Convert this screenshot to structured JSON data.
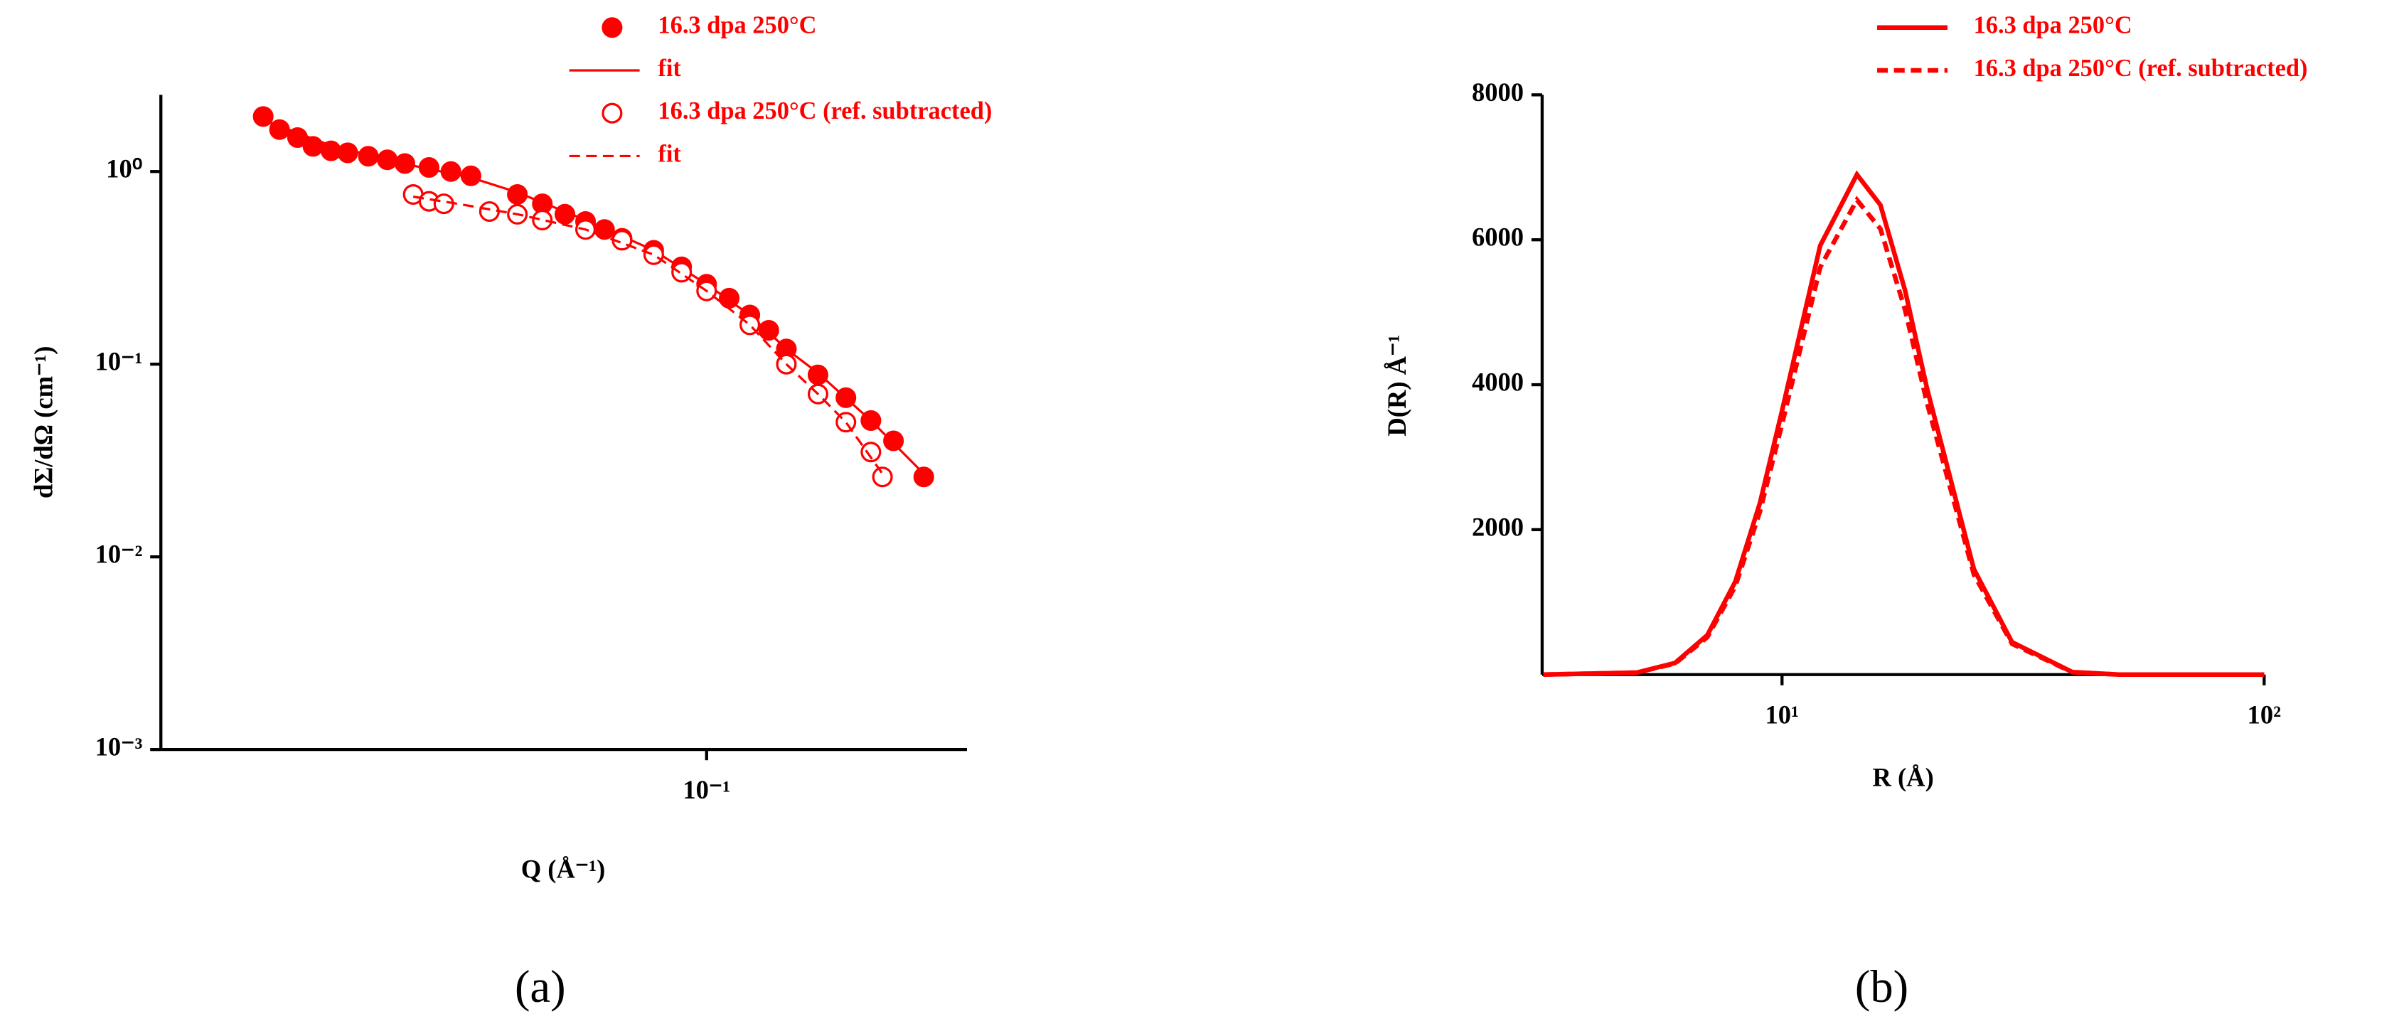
{
  "chart_data": [
    {
      "type": "scatter",
      "caption": "(a)",
      "x_label": "Q (Å⁻¹)",
      "y_label": "dΣ/dΩ (cm⁻¹)",
      "xscale": "log",
      "yscale": "log",
      "xlim": [
        0.01,
        0.3
      ],
      "ylim": [
        0.001,
        2.5
      ],
      "xticks": [
        {
          "value": 0.1,
          "label": "10⁻¹"
        }
      ],
      "yticks": [
        {
          "value": 0.001,
          "label": "10⁻³"
        },
        {
          "value": 0.01,
          "label": "10⁻²"
        },
        {
          "value": 0.1,
          "label": "10⁻¹"
        },
        {
          "value": 1,
          "label": "10⁰"
        }
      ],
      "series": [
        {
          "name": "16.3 dpa 250°C",
          "color": "#ff0000",
          "style": "filled-circle",
          "x": [
            0.0154,
            0.0165,
            0.0178,
            0.019,
            0.0205,
            0.022,
            0.024,
            0.026,
            0.028,
            0.031,
            0.034,
            0.037,
            0.045,
            0.05,
            0.055,
            0.06,
            0.065,
            0.07,
            0.08,
            0.09,
            0.1,
            0.11,
            0.12,
            0.13,
            0.14,
            0.16,
            0.18,
            0.2,
            0.22,
            0.25
          ],
          "values": [
            1.93,
            1.65,
            1.5,
            1.35,
            1.28,
            1.25,
            1.2,
            1.15,
            1.1,
            1.05,
            1.0,
            0.95,
            0.76,
            0.68,
            0.6,
            0.55,
            0.5,
            0.45,
            0.39,
            0.32,
            0.26,
            0.22,
            0.18,
            0.15,
            0.12,
            0.088,
            0.067,
            0.051,
            0.04,
            0.026
          ]
        },
        {
          "name": "fit",
          "color": "#ff0000",
          "style": "solid",
          "x": [
            0.0154,
            0.02,
            0.025,
            0.03,
            0.037,
            0.045,
            0.06,
            0.08,
            0.1,
            0.12,
            0.14,
            0.16,
            0.2,
            0.25
          ],
          "values": [
            1.85,
            1.4,
            1.18,
            1.05,
            0.93,
            0.78,
            0.56,
            0.39,
            0.26,
            0.18,
            0.12,
            0.09,
            0.051,
            0.027
          ]
        },
        {
          "name": "16.3 dpa 250°C (ref. subtracted)",
          "color": "#ff0000",
          "style": "open-circle",
          "x": [
            0.029,
            0.031,
            0.033,
            0.04,
            0.045,
            0.05,
            0.06,
            0.07,
            0.08,
            0.09,
            0.1,
            0.12,
            0.14,
            0.16,
            0.18,
            0.2,
            0.21
          ],
          "values": [
            0.76,
            0.7,
            0.68,
            0.62,
            0.6,
            0.56,
            0.5,
            0.44,
            0.37,
            0.3,
            0.24,
            0.16,
            0.1,
            0.07,
            0.05,
            0.035,
            0.026
          ]
        },
        {
          "name": "fit",
          "color": "#ff0000",
          "style": "dashed",
          "x": [
            0.029,
            0.035,
            0.045,
            0.06,
            0.08,
            0.1,
            0.12,
            0.14,
            0.16,
            0.18,
            0.21
          ],
          "values": [
            0.74,
            0.68,
            0.6,
            0.5,
            0.37,
            0.24,
            0.16,
            0.1,
            0.07,
            0.05,
            0.027
          ]
        }
      ]
    },
    {
      "type": "line",
      "caption": "(b)",
      "x_label": "R  (Å)",
      "y_label": "D(R) Å⁻¹",
      "xscale": "log",
      "yscale": "linear",
      "xlim": [
        3.18,
        100
      ],
      "ylim": [
        0,
        8000
      ],
      "xticks": [
        {
          "value": 10,
          "label": "10¹"
        },
        {
          "value": 100,
          "label": "10²"
        }
      ],
      "yticks": [
        2000,
        4000,
        6000,
        8000
      ],
      "series": [
        {
          "name": "16.3 dpa 250°C",
          "color": "#ff0000",
          "style": "solid",
          "x": [
            3.2,
            5,
            6,
            7,
            8,
            9,
            10,
            12,
            14.3,
            16,
            18,
            20,
            25,
            30,
            40,
            50,
            100
          ],
          "values": [
            0,
            28,
            161,
            545,
            1283,
            2370,
            3640,
            5920,
            6900,
            6480,
            5300,
            3940,
            1456,
            447,
            35,
            0,
            0
          ]
        },
        {
          "name": "16.3 dpa 250°C (ref. subtracted)",
          "color": "#ff0000",
          "style": "dashed",
          "x": [
            3.2,
            5,
            6,
            7,
            8,
            9,
            10,
            12,
            14.3,
            16,
            18,
            20,
            25,
            30,
            40,
            50,
            100
          ],
          "values": [
            0,
            27,
            153,
            517,
            1218,
            2250,
            3455,
            5620,
            6550,
            6150,
            5030,
            3740,
            1382,
            424,
            33,
            0,
            0
          ]
        }
      ]
    }
  ]
}
